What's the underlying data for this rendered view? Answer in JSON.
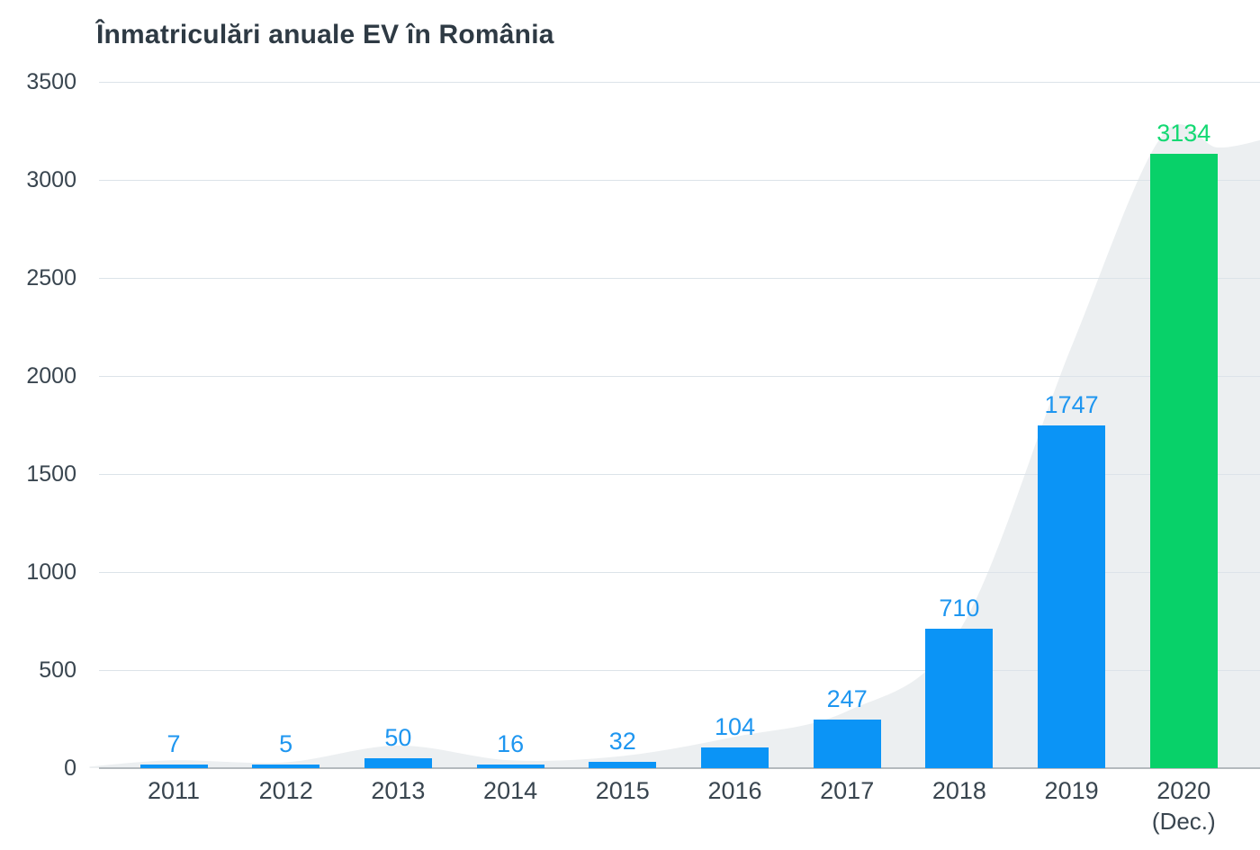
{
  "title": "Înmatriculări anuale EV în România",
  "colors": {
    "background": "#FFFFFF",
    "title_text": "#2E3A44",
    "axis_text": "#39454F",
    "gridline": "#DCE3E9",
    "zero_axis_line": "#B4BABE",
    "bar_blue": "#0B94F6",
    "bar_green": "#08D169",
    "value_label_blue": "#1E96F0",
    "value_label_green": "#14D973",
    "trend_area": "#ECEFF1"
  },
  "chart_data": {
    "type": "bar",
    "title": "Înmatriculări anuale EV în România",
    "categories": [
      "2011",
      "2012",
      "2013",
      "2014",
      "2015",
      "2016",
      "2017",
      "2018",
      "2019",
      "2020"
    ],
    "category_notes": [
      "",
      "",
      "",
      "",
      "",
      "",
      "",
      "",
      "",
      "(Dec.)"
    ],
    "values": [
      7,
      5,
      50,
      16,
      32,
      104,
      247,
      710,
      1747,
      3134
    ],
    "value_labels": [
      "7",
      "5",
      "50",
      "16",
      "32",
      "104",
      "247",
      "710",
      "1747",
      "3134"
    ],
    "bar_color_keys": [
      "blue",
      "blue",
      "blue",
      "blue",
      "blue",
      "blue",
      "blue",
      "blue",
      "blue",
      "green"
    ],
    "xlabel": "",
    "ylabel": "",
    "ylim": [
      0,
      3500
    ],
    "yticks": [
      0,
      500,
      1000,
      1500,
      2000,
      2500,
      3000,
      3500
    ],
    "grid": "horizontal",
    "legend": "none",
    "background_trend_area": {
      "description": "smoothed light-gray area of the same series, extended past the 2020 bar to the right edge",
      "points_year_value": [
        [
          2010.25,
          8
        ],
        [
          2011,
          40
        ],
        [
          2012,
          30
        ],
        [
          2013,
          115
        ],
        [
          2014,
          40
        ],
        [
          2015,
          62
        ],
        [
          2016,
          160
        ],
        [
          2017,
          290
        ],
        [
          2018,
          700
        ],
        [
          2019,
          2150
        ],
        [
          2019.8,
          3220
        ],
        [
          2020.3,
          3165
        ],
        [
          2020.7,
          3205
        ]
      ]
    }
  }
}
